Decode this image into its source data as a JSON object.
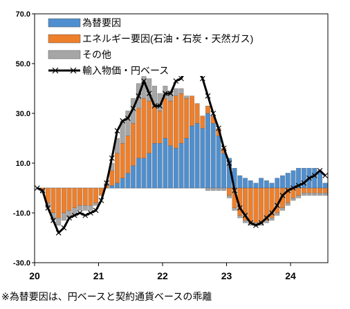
{
  "chart_data": {
    "type": "bar+line",
    "stacked": true,
    "ylim": [
      -30,
      70
    ],
    "yticks": [
      "70.0",
      "50.0",
      "30.0",
      "10.0",
      "-10.0",
      "-30.0"
    ],
    "ytick_values": [
      70,
      50,
      30,
      10,
      -10,
      -30
    ],
    "x_labels": [
      {
        "label": "20",
        "month_index": 0
      },
      {
        "label": "21",
        "month_index": 12
      },
      {
        "label": "22",
        "month_index": 24
      },
      {
        "label": "23",
        "month_index": 36
      },
      {
        "label": "24",
        "month_index": 48
      }
    ],
    "legend_position": "top-left",
    "colors": {
      "fx": "#4f8fcf",
      "energy": "#ee7f2b",
      "other": "#a6a6a6",
      "line": "#000000"
    },
    "series": [
      {
        "name": "為替要因",
        "key": "fx",
        "kind": "bar",
        "values": [
          0,
          0,
          0,
          0,
          0,
          0,
          0,
          0,
          0,
          0,
          0,
          0,
          0,
          0,
          1,
          2,
          4,
          6,
          9,
          12,
          12,
          14,
          18,
          18,
          20,
          17,
          16,
          18,
          20,
          25,
          26,
          24,
          30,
          26,
          21,
          14,
          12,
          8,
          5,
          4,
          3,
          2,
          4,
          3,
          2,
          4,
          5,
          6,
          7,
          8,
          8,
          8,
          8,
          7,
          2
        ]
      },
      {
        "name": "エネルギー要因(石油・石炭・天然ガス)",
        "key": "energy",
        "kind": "bar",
        "values": [
          0,
          -1,
          -6,
          -10,
          -12,
          -10,
          -9,
          -8,
          -7,
          -7,
          -7,
          -6,
          -3,
          1,
          6,
          12,
          14,
          15,
          17,
          20,
          24,
          21,
          15,
          13,
          16,
          18,
          21,
          20,
          16,
          12,
          8,
          5,
          3,
          3,
          3,
          2,
          -3,
          -8,
          -11,
          -13,
          -14,
          -14,
          -14,
          -13,
          -12,
          -10,
          -8,
          -6,
          -4,
          -3,
          -2,
          -2,
          -2,
          -2,
          -2
        ]
      },
      {
        "name": "その他",
        "key": "other",
        "kind": "bar",
        "values": [
          0,
          -1,
          -2,
          -3,
          -3,
          -3,
          -3,
          -3,
          -2,
          -2,
          -2,
          -1,
          0,
          1,
          3,
          6,
          9,
          10,
          10,
          10,
          10,
          9,
          8,
          7,
          5,
          4,
          3,
          2,
          1,
          0,
          0,
          0,
          -1,
          -1,
          -1,
          -1,
          -1,
          -1,
          -1,
          -1,
          -1,
          -1,
          -1,
          -1,
          -1,
          -1,
          -1,
          -1,
          -1,
          -1,
          -1,
          -1,
          -1,
          -1,
          -1
        ]
      },
      {
        "name": "輸入物価・円ベース",
        "key": "line",
        "kind": "line",
        "values": [
          0,
          -1,
          -8,
          -13,
          -18,
          -16,
          -12,
          -11,
          -10,
          -11,
          -10,
          -9,
          -5,
          2,
          12,
          23,
          27,
          28,
          32,
          37,
          43,
          38,
          33,
          33,
          38,
          38,
          43,
          44,
          49,
          50,
          49,
          44,
          37,
          30,
          24,
          16,
          10,
          -1,
          -8,
          -11,
          -14,
          -15,
          -14,
          -12,
          -10,
          -7,
          -3,
          -1,
          0,
          1,
          2,
          4,
          5,
          7,
          5
        ]
      }
    ]
  },
  "footnote": "※為替要因は、円ベースと契約通貨ベースの乖離"
}
